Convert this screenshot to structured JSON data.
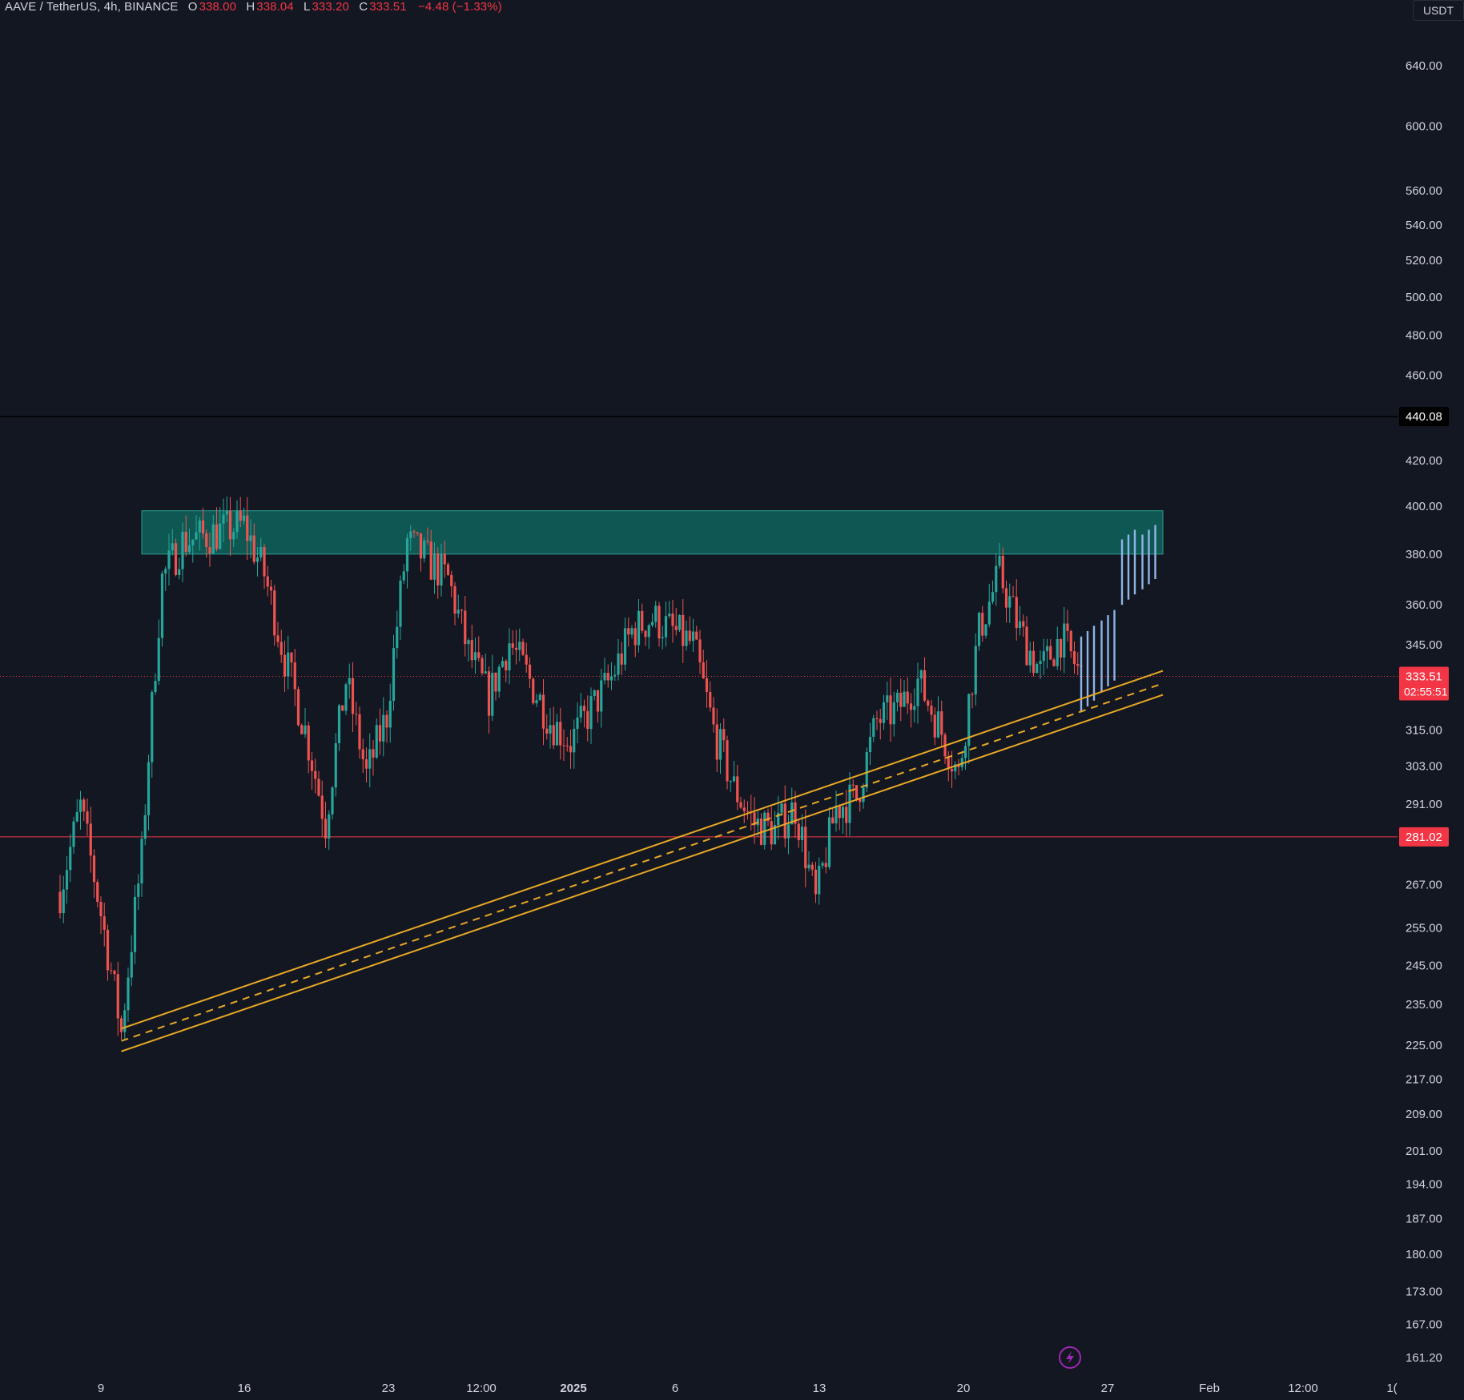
{
  "header": {
    "symbol": "AAVE / TetherUS, 4h, BINANCE",
    "open_label": "O",
    "open": "338.00",
    "high_label": "H",
    "high": "338.04",
    "low_label": "L",
    "low": "333.20",
    "close_label": "C",
    "close": "333.51",
    "change": "−4.48 (−1.33%)",
    "currency": "USDT"
  },
  "chart_data": {
    "type": "candlestick",
    "scale": "log",
    "ylim": [
      158,
      700
    ],
    "y_ticks": [
      "640.00",
      "600.00",
      "560.00",
      "540.00",
      "520.00",
      "500.00",
      "480.00",
      "460.00",
      "420.00",
      "400.00",
      "380.00",
      "360.00",
      "345.00",
      "315.00",
      "303.00",
      "291.00",
      "267.00",
      "255.00",
      "245.00",
      "235.00",
      "225.00",
      "217.00",
      "209.00",
      "201.00",
      "194.00",
      "187.00",
      "180.00",
      "173.00",
      "167.00",
      "161.20"
    ],
    "x_tick_labels": [
      "9",
      "16",
      "23",
      "12:00",
      "2025",
      "6",
      "13",
      "20",
      "27",
      "Feb",
      "12:00",
      "1("
    ],
    "x_range_start": "2024-12-09",
    "price_labels": {
      "high_line": "440.08",
      "last_price": "333.51",
      "countdown": "02:55:51",
      "support_line": "281.02"
    },
    "resistance_zone": {
      "from": 380,
      "to": 398
    },
    "trendline_channel": {
      "start": {
        "time": "2024-12-10",
        "upper": 229,
        "mid": 226,
        "lower": 223.5
      },
      "end": {
        "time": "2025-01-30",
        "upper": 335.5,
        "mid": 331,
        "lower": 327
      }
    },
    "key_points": [
      {
        "time": "2024-12-07",
        "price": 265
      },
      {
        "time": "2024-12-08",
        "price": 290
      },
      {
        "time": "2024-12-10",
        "price": 228
      },
      {
        "time": "2024-12-11",
        "price": 275
      },
      {
        "time": "2024-12-12",
        "price": 370
      },
      {
        "time": "2024-12-13",
        "price": 385
      },
      {
        "time": "2024-12-16",
        "price": 392
      },
      {
        "time": "2024-12-17",
        "price": 372
      },
      {
        "time": "2024-12-18",
        "price": 340
      },
      {
        "time": "2024-12-19",
        "price": 315
      },
      {
        "time": "2024-12-20",
        "price": 285
      },
      {
        "time": "2024-12-21",
        "price": 332
      },
      {
        "time": "2024-12-22",
        "price": 300
      },
      {
        "time": "2024-12-23",
        "price": 320
      },
      {
        "time": "2024-12-24",
        "price": 385
      },
      {
        "time": "2024-12-26",
        "price": 370
      },
      {
        "time": "2024-12-27",
        "price": 342
      },
      {
        "time": "2024-12-28",
        "price": 326
      },
      {
        "time": "2024-12-29",
        "price": 346
      },
      {
        "time": "2024-12-30",
        "price": 332
      },
      {
        "time": "2024-12-31",
        "price": 318
      },
      {
        "time": "2025-01-01",
        "price": 311
      },
      {
        "time": "2025-01-02",
        "price": 322
      },
      {
        "time": "2025-01-03",
        "price": 333
      },
      {
        "time": "2025-01-04",
        "price": 350
      },
      {
        "time": "2025-01-05",
        "price": 355
      },
      {
        "time": "2025-01-07",
        "price": 345
      },
      {
        "time": "2025-01-08",
        "price": 315
      },
      {
        "time": "2025-01-09",
        "price": 296
      },
      {
        "time": "2025-01-10",
        "price": 285
      },
      {
        "time": "2025-01-11",
        "price": 283
      },
      {
        "time": "2025-01-12",
        "price": 290
      },
      {
        "time": "2025-01-13",
        "price": 262
      },
      {
        "time": "2025-01-14",
        "price": 290
      },
      {
        "time": "2025-01-15",
        "price": 293
      },
      {
        "time": "2025-01-16",
        "price": 318
      },
      {
        "time": "2025-01-17",
        "price": 322
      },
      {
        "time": "2025-01-18",
        "price": 332
      },
      {
        "time": "2025-01-19",
        "price": 317
      },
      {
        "time": "2025-01-20",
        "price": 300
      },
      {
        "time": "2025-01-21",
        "price": 350
      },
      {
        "time": "2025-01-22",
        "price": 372
      },
      {
        "time": "2025-01-23",
        "price": 350
      },
      {
        "time": "2025-01-24",
        "price": 335
      },
      {
        "time": "2025-01-25",
        "price": 348
      },
      {
        "time": "2025-01-26",
        "price": 333.5
      }
    ],
    "projection": [
      {
        "time": "2025-01-26",
        "low": 323,
        "high": 350
      },
      {
        "time": "2025-01-27",
        "low": 330,
        "high": 356
      },
      {
        "time": "2025-01-28",
        "low": 362,
        "high": 388
      },
      {
        "time": "2025-01-29",
        "low": 368,
        "high": 390
      }
    ]
  },
  "colors": {
    "background": "#131722",
    "up": "#26a69a",
    "down": "#ef5350",
    "zone": "#0f5753",
    "trendline": "#e8a825",
    "projection": "#8fb4e6",
    "last_price_bg": "#f23645",
    "support_line": "#f23645",
    "axis_text": "#d1d4dc"
  },
  "icons": {
    "bottom_marker": "lightning-bolt-icon"
  }
}
